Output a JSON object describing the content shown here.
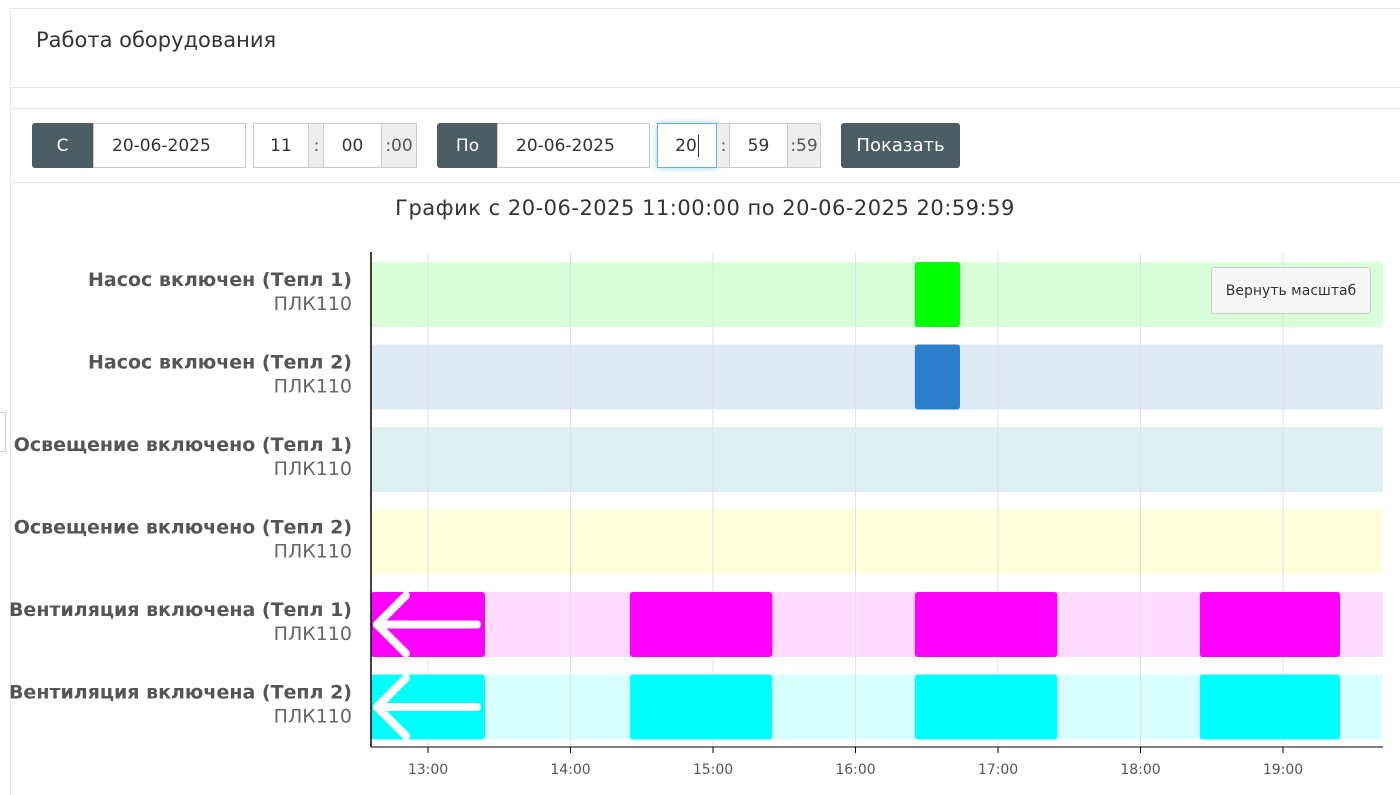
{
  "page": {
    "title": "Работа оборудования"
  },
  "filter": {
    "from_label": "С",
    "from_date": "20-06-2025",
    "from_hour": "11",
    "from_minute": "00",
    "from_seconds": ":00",
    "to_label": "По",
    "to_date": "20-06-2025",
    "to_hour": "20",
    "to_minute": "59",
    "to_seconds": ":59",
    "time_sep": ":",
    "show_button": "Показать"
  },
  "chart": {
    "reset_zoom": "Вернуть масштаб"
  },
  "chart_data": {
    "type": "timeline",
    "title": "График с 20-06-2025 11:00:00 по 20-06-2025 20:59:59",
    "x_range": [
      "12:36",
      "19:42"
    ],
    "x_ticks": [
      "13:00",
      "14:00",
      "15:00",
      "16:00",
      "17:00",
      "18:00",
      "19:00"
    ],
    "rows": [
      {
        "name": "Насос включен (Тепл 1)",
        "device": "ПЛК110",
        "bg_color": "#d9ffd9",
        "bar_color": "#00ff00",
        "intervals": [
          [
            "16:25",
            "16:44"
          ]
        ]
      },
      {
        "name": "Насос включен (Тепл 2)",
        "device": "ПЛК110",
        "bg_color": "#deeaf5",
        "bar_color": "#2b7fcc",
        "intervals": [
          [
            "16:25",
            "16:44"
          ]
        ]
      },
      {
        "name": "Освещение включено (Тепл 1)",
        "device": "ПЛК110",
        "bg_color": "#ddf2f0",
        "bar_color": "#00aaaa",
        "intervals": []
      },
      {
        "name": "Освещение включено (Тепл 2)",
        "device": "ПЛК110",
        "bg_color": "#ffffdd",
        "bar_color": "#ffff00",
        "intervals": []
      },
      {
        "name": "Вентиляция включена (Тепл 1)",
        "device": "ПЛК110",
        "bg_color": "#ffdcff",
        "bar_color": "#ff00ff",
        "intervals": [
          [
            "12:36",
            "13:24"
          ],
          [
            "14:25",
            "15:25"
          ],
          [
            "16:25",
            "17:25"
          ],
          [
            "18:25",
            "19:24"
          ]
        ]
      },
      {
        "name": "Вентиляция включена (Тепл 2)",
        "device": "ПЛК110",
        "bg_color": "#d9ffff",
        "bar_color": "#00ffff",
        "intervals": [
          [
            "12:36",
            "13:24"
          ],
          [
            "14:25",
            "15:25"
          ],
          [
            "16:25",
            "17:25"
          ],
          [
            "18:25",
            "19:24"
          ]
        ]
      }
    ]
  }
}
